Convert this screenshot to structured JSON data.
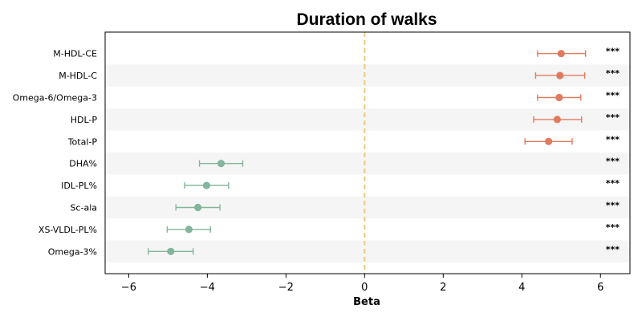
{
  "chart_data": {
    "type": "forest",
    "title": "Duration of walks",
    "xlabel": "Beta",
    "xlim": [
      -6.6,
      6.75
    ],
    "xticks": [
      -6,
      -4,
      -2,
      0,
      2,
      4,
      6
    ],
    "xtick_labels": [
      "−6",
      "−4",
      "−2",
      "0",
      "2",
      "4",
      "6"
    ],
    "reference_line": 0,
    "categories": [
      "M-HDL-CE",
      "M-HDL-C",
      "Omega-6/Omega-3",
      "HDL-P",
      "Total-P",
      "DHA%",
      "IDL-PL%",
      "Sc-ala",
      "XS-VLDL-PL%",
      "Omega-3%"
    ],
    "values": [
      5.0,
      4.97,
      4.95,
      4.9,
      4.68,
      -3.65,
      -4.02,
      -4.24,
      -4.47,
      -4.93
    ],
    "ci_low": [
      4.4,
      4.35,
      4.4,
      4.3,
      4.08,
      -4.2,
      -4.58,
      -4.8,
      -5.02,
      -5.5
    ],
    "ci_high": [
      5.62,
      5.6,
      5.5,
      5.52,
      5.28,
      -3.1,
      -3.46,
      -3.68,
      -3.92,
      -4.36
    ],
    "significance": [
      "***",
      "***",
      "***",
      "***",
      "***",
      "***",
      "***",
      "***",
      "***",
      "***"
    ],
    "colors": {
      "positive": "#e07b5f",
      "negative": "#82b59a",
      "reference_line": "#f0c882",
      "stripe": "#f5f5f5"
    }
  }
}
